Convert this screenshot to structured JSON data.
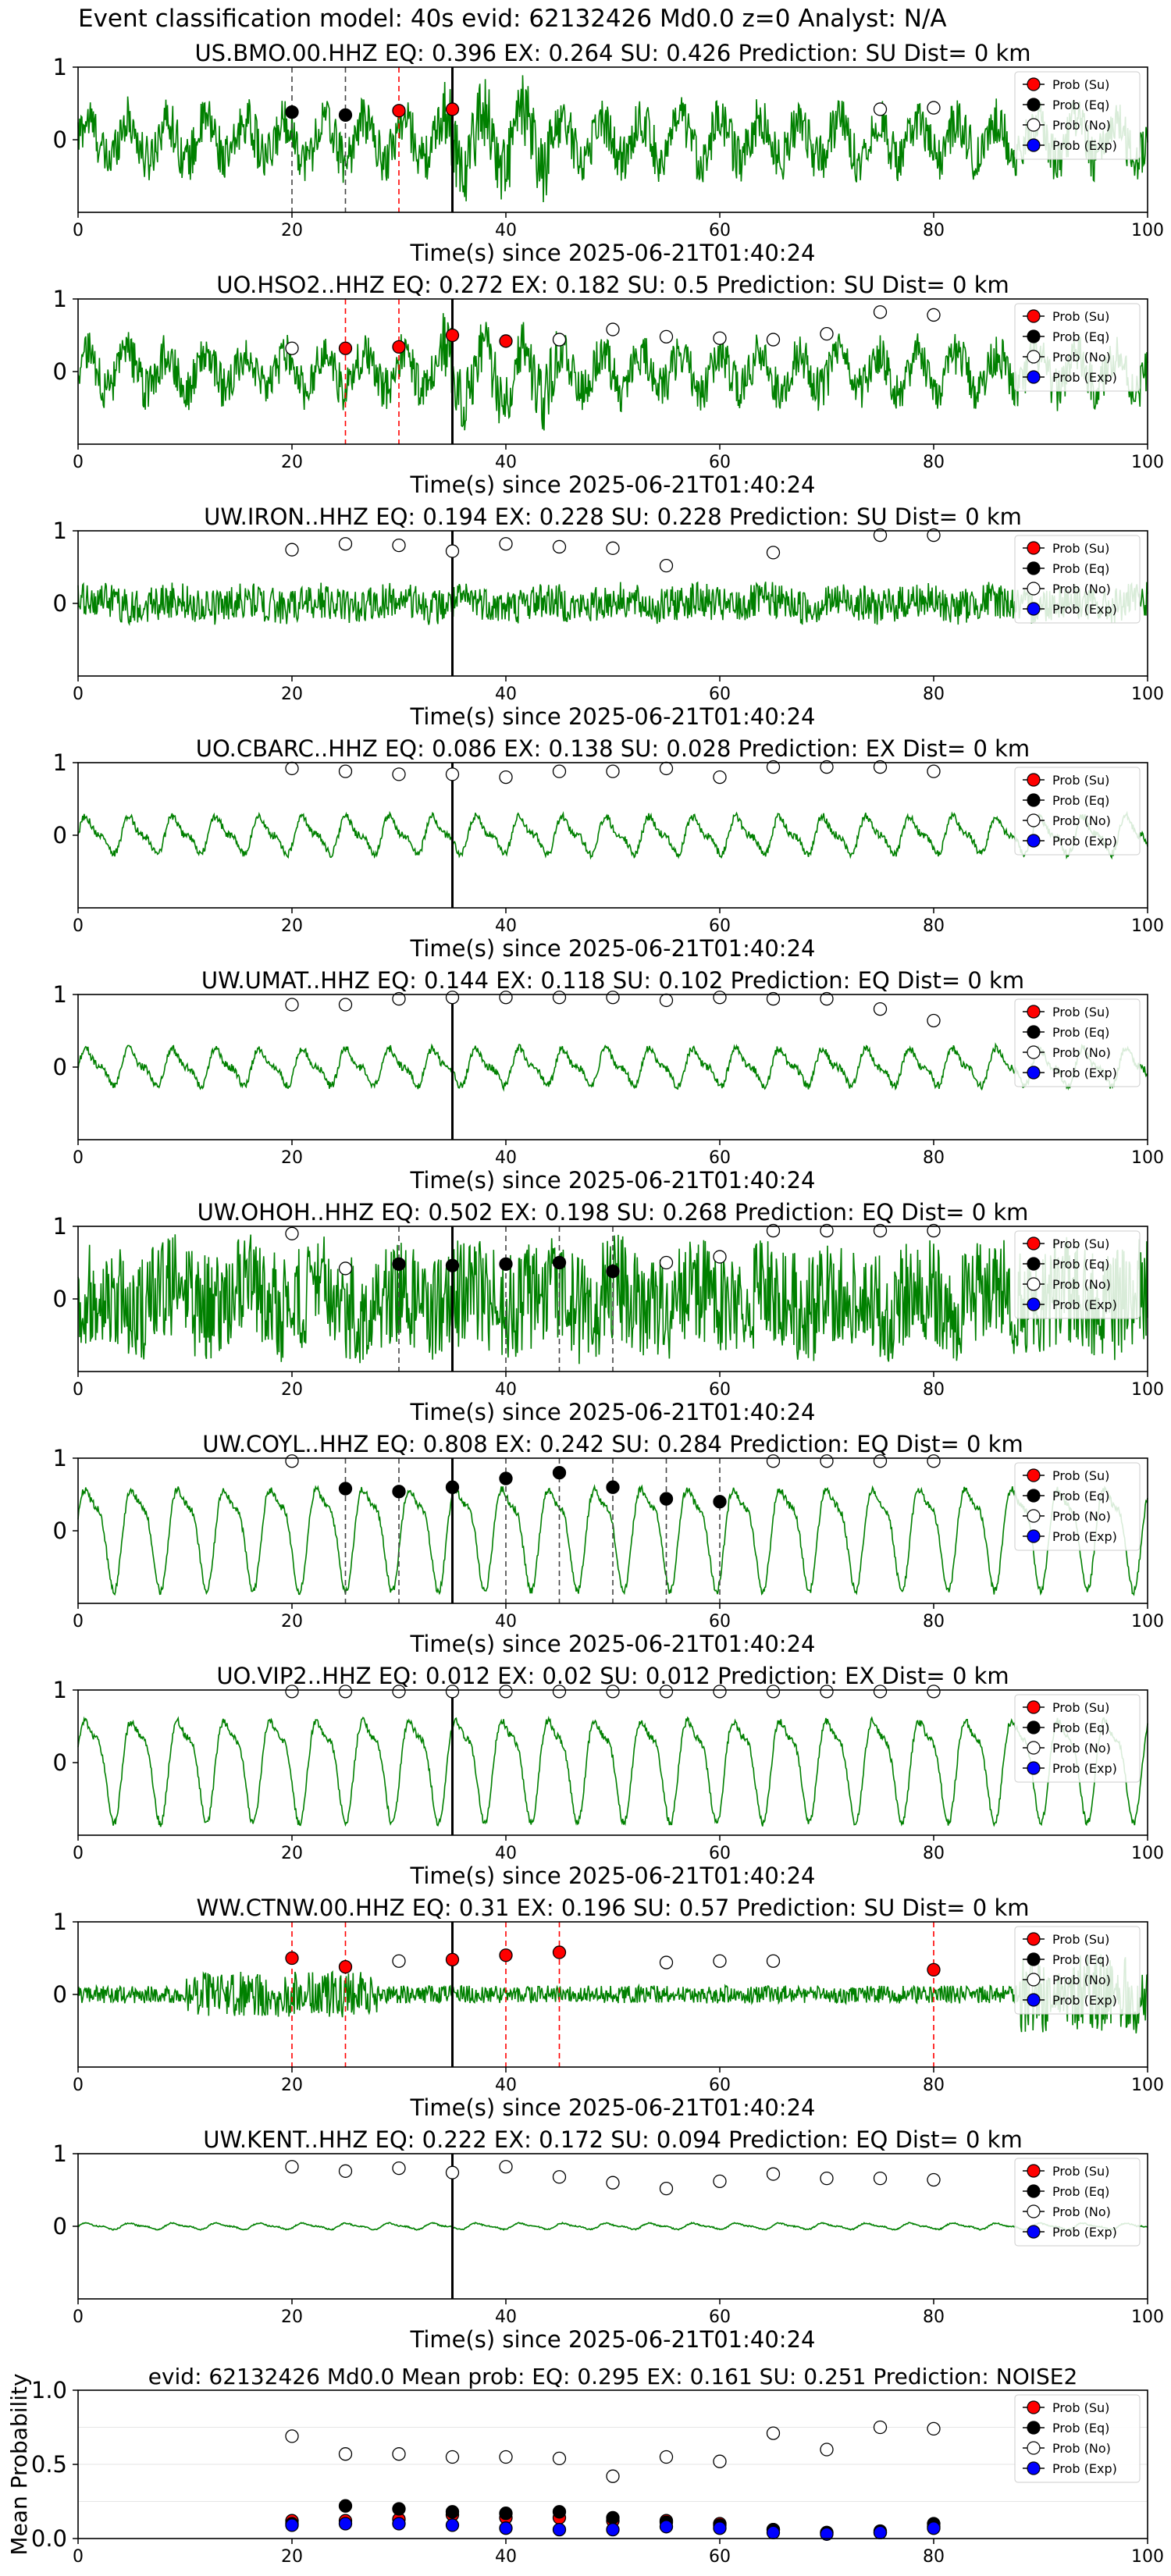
{
  "figure_title": "Event classification model: 40s evid: 62132426 Md0.0 z=0 Analyst: N/A",
  "xlabel": "Time(s) since 2025-06-21T01:40:24",
  "xticks": [
    "0",
    "20",
    "40",
    "60",
    "80",
    "100"
  ],
  "yticks_station": [
    "1",
    "0"
  ],
  "legend": {
    "su": "Prob (Su)",
    "eq": "Prob (Eq)",
    "no": "Prob (No)",
    "exp": "Prob (Exp)"
  },
  "colors": {
    "su": "#ff0000",
    "eq": "#000000",
    "no": "#ffffff",
    "exp": "#0000ff",
    "waveform": "#008000",
    "pick_line": "#000000"
  },
  "chart_data": [
    {
      "type": "line",
      "title": "US.BMO.00.HHZ   EQ: 0.396  EX: 0.264  SU: 0.426   Prediction: SU    Dist= 0 km",
      "pick_time": 35,
      "wave": {
        "amp": 0.55,
        "style": "burst"
      },
      "xlim": [
        0,
        100
      ],
      "ylim": [
        -1,
        1
      ],
      "points": [
        {
          "x": 20,
          "y": 0.38,
          "class": "eq",
          "marker": "dash"
        },
        {
          "x": 25,
          "y": 0.34,
          "class": "eq",
          "marker": "dash"
        },
        {
          "x": 30,
          "y": 0.4,
          "class": "su",
          "marker": "dash"
        },
        {
          "x": 35,
          "y": 0.42,
          "class": "su",
          "marker": "none"
        },
        {
          "x": 75,
          "y": 0.42,
          "class": "no",
          "marker": "none"
        },
        {
          "x": 80,
          "y": 0.44,
          "class": "no",
          "marker": "none"
        }
      ]
    },
    {
      "type": "line",
      "title": "UO.HSO2..HHZ   EQ: 0.272  EX: 0.182  SU: 0.5   Prediction: SU    Dist= 0 km",
      "pick_time": 35,
      "wave": {
        "amp": 0.5,
        "style": "burst"
      },
      "xlim": [
        0,
        100
      ],
      "ylim": [
        -1,
        1
      ],
      "points": [
        {
          "x": 20,
          "y": 0.32,
          "class": "no",
          "marker": "none"
        },
        {
          "x": 25,
          "y": 0.32,
          "class": "su",
          "marker": "dash"
        },
        {
          "x": 30,
          "y": 0.34,
          "class": "su",
          "marker": "dash"
        },
        {
          "x": 35,
          "y": 0.5,
          "class": "su",
          "marker": "none"
        },
        {
          "x": 40,
          "y": 0.42,
          "class": "su",
          "marker": "none"
        },
        {
          "x": 45,
          "y": 0.44,
          "class": "no",
          "marker": "none"
        },
        {
          "x": 50,
          "y": 0.58,
          "class": "no",
          "marker": "none"
        },
        {
          "x": 55,
          "y": 0.48,
          "class": "no",
          "marker": "none"
        },
        {
          "x": 60,
          "y": 0.46,
          "class": "no",
          "marker": "none"
        },
        {
          "x": 65,
          "y": 0.44,
          "class": "no",
          "marker": "none"
        },
        {
          "x": 70,
          "y": 0.52,
          "class": "no",
          "marker": "none"
        },
        {
          "x": 75,
          "y": 0.82,
          "class": "no",
          "marker": "none"
        },
        {
          "x": 80,
          "y": 0.78,
          "class": "no",
          "marker": "none"
        }
      ]
    },
    {
      "type": "line",
      "title": "UW.IRON..HHZ   EQ: 0.194  EX: 0.228  SU: 0.228   Prediction: SU    Dist= 0 km",
      "pick_time": 35,
      "wave": {
        "amp": 0.25,
        "style": "noise"
      },
      "xlim": [
        0,
        100
      ],
      "ylim": [
        -1,
        1
      ],
      "points": [
        {
          "x": 20,
          "y": 0.74,
          "class": "no",
          "marker": "none"
        },
        {
          "x": 25,
          "y": 0.82,
          "class": "no",
          "marker": "none"
        },
        {
          "x": 30,
          "y": 0.8,
          "class": "no",
          "marker": "none"
        },
        {
          "x": 35,
          "y": 0.72,
          "class": "no",
          "marker": "none"
        },
        {
          "x": 40,
          "y": 0.82,
          "class": "no",
          "marker": "none"
        },
        {
          "x": 45,
          "y": 0.78,
          "class": "no",
          "marker": "none"
        },
        {
          "x": 50,
          "y": 0.76,
          "class": "no",
          "marker": "none"
        },
        {
          "x": 55,
          "y": 0.52,
          "class": "no",
          "marker": "none"
        },
        {
          "x": 65,
          "y": 0.7,
          "class": "no",
          "marker": "none"
        },
        {
          "x": 75,
          "y": 0.94,
          "class": "no",
          "marker": "none"
        },
        {
          "x": 80,
          "y": 0.94,
          "class": "no",
          "marker": "none"
        }
      ]
    },
    {
      "type": "line",
      "title": "UO.CBARC..HHZ   EQ: 0.086  EX: 0.138  SU: 0.028   Prediction: EX    Dist= 0 km",
      "pick_time": 35,
      "wave": {
        "amp": 0.3,
        "style": "smooth"
      },
      "xlim": [
        0,
        100
      ],
      "ylim": [
        -1,
        1
      ],
      "points": [
        {
          "x": 20,
          "y": 0.92,
          "class": "no",
          "marker": "none"
        },
        {
          "x": 25,
          "y": 0.88,
          "class": "no",
          "marker": "none"
        },
        {
          "x": 30,
          "y": 0.84,
          "class": "no",
          "marker": "none"
        },
        {
          "x": 35,
          "y": 0.84,
          "class": "no",
          "marker": "none"
        },
        {
          "x": 40,
          "y": 0.8,
          "class": "no",
          "marker": "none"
        },
        {
          "x": 45,
          "y": 0.88,
          "class": "no",
          "marker": "none"
        },
        {
          "x": 50,
          "y": 0.88,
          "class": "no",
          "marker": "none"
        },
        {
          "x": 55,
          "y": 0.92,
          "class": "no",
          "marker": "none"
        },
        {
          "x": 60,
          "y": 0.8,
          "class": "no",
          "marker": "none"
        },
        {
          "x": 65,
          "y": 0.94,
          "class": "no",
          "marker": "none"
        },
        {
          "x": 70,
          "y": 0.94,
          "class": "no",
          "marker": "none"
        },
        {
          "x": 75,
          "y": 0.94,
          "class": "no",
          "marker": "none"
        },
        {
          "x": 80,
          "y": 0.88,
          "class": "no",
          "marker": "none"
        }
      ]
    },
    {
      "type": "line",
      "title": "UW.UMAT..HHZ   EQ: 0.144  EX: 0.118  SU: 0.102   Prediction: EQ    Dist= 0 km",
      "pick_time": 35,
      "wave": {
        "amp": 0.3,
        "style": "smooth"
      },
      "xlim": [
        0,
        100
      ],
      "ylim": [
        -1,
        1
      ],
      "points": [
        {
          "x": 20,
          "y": 0.86,
          "class": "no",
          "marker": "none"
        },
        {
          "x": 25,
          "y": 0.86,
          "class": "no",
          "marker": "none"
        },
        {
          "x": 30,
          "y": 0.94,
          "class": "no",
          "marker": "none"
        },
        {
          "x": 35,
          "y": 0.96,
          "class": "no",
          "marker": "none"
        },
        {
          "x": 40,
          "y": 0.96,
          "class": "no",
          "marker": "none"
        },
        {
          "x": 45,
          "y": 0.96,
          "class": "no",
          "marker": "none"
        },
        {
          "x": 50,
          "y": 0.96,
          "class": "no",
          "marker": "none"
        },
        {
          "x": 55,
          "y": 0.92,
          "class": "no",
          "marker": "none"
        },
        {
          "x": 60,
          "y": 0.96,
          "class": "no",
          "marker": "none"
        },
        {
          "x": 65,
          "y": 0.94,
          "class": "no",
          "marker": "none"
        },
        {
          "x": 70,
          "y": 0.94,
          "class": "no",
          "marker": "none"
        },
        {
          "x": 75,
          "y": 0.8,
          "class": "no",
          "marker": "none"
        },
        {
          "x": 80,
          "y": 0.64,
          "class": "no",
          "marker": "none"
        }
      ]
    },
    {
      "type": "line",
      "title": "UW.OHOH..HHZ   EQ: 0.502  EX: 0.198  SU: 0.268   Prediction: EQ    Dist= 0 km",
      "pick_time": 35,
      "wave": {
        "amp": 0.75,
        "style": "noise"
      },
      "xlim": [
        0,
        100
      ],
      "ylim": [
        -1,
        1
      ],
      "points": [
        {
          "x": 20,
          "y": 0.9,
          "class": "no",
          "marker": "none"
        },
        {
          "x": 25,
          "y": 0.42,
          "class": "no",
          "marker": "none"
        },
        {
          "x": 30,
          "y": 0.48,
          "class": "eq",
          "marker": "dash"
        },
        {
          "x": 35,
          "y": 0.46,
          "class": "eq",
          "marker": "none"
        },
        {
          "x": 40,
          "y": 0.48,
          "class": "eq",
          "marker": "dash"
        },
        {
          "x": 45,
          "y": 0.5,
          "class": "eq",
          "marker": "dash"
        },
        {
          "x": 50,
          "y": 0.38,
          "class": "eq",
          "marker": "dash"
        },
        {
          "x": 55,
          "y": 0.5,
          "class": "no",
          "marker": "none"
        },
        {
          "x": 60,
          "y": 0.58,
          "class": "no",
          "marker": "none"
        },
        {
          "x": 65,
          "y": 0.94,
          "class": "no",
          "marker": "none"
        },
        {
          "x": 70,
          "y": 0.94,
          "class": "no",
          "marker": "none"
        },
        {
          "x": 75,
          "y": 0.94,
          "class": "no",
          "marker": "none"
        },
        {
          "x": 80,
          "y": 0.94,
          "class": "no",
          "marker": "none"
        }
      ]
    },
    {
      "type": "line",
      "title": "UW.COYL..HHZ   EQ: 0.808  EX: 0.242  SU: 0.284   Prediction: EQ    Dist= 0 km",
      "pick_time": 35,
      "wave": {
        "amp": 0.85,
        "style": "oscill"
      },
      "xlim": [
        0,
        100
      ],
      "ylim": [
        -1,
        1
      ],
      "points": [
        {
          "x": 20,
          "y": 0.96,
          "class": "no",
          "marker": "none"
        },
        {
          "x": 25,
          "y": 0.58,
          "class": "eq",
          "marker": "dash"
        },
        {
          "x": 30,
          "y": 0.54,
          "class": "eq",
          "marker": "dash"
        },
        {
          "x": 35,
          "y": 0.6,
          "class": "eq",
          "marker": "none"
        },
        {
          "x": 40,
          "y": 0.72,
          "class": "eq",
          "marker": "dash"
        },
        {
          "x": 45,
          "y": 0.8,
          "class": "eq",
          "marker": "dash"
        },
        {
          "x": 50,
          "y": 0.6,
          "class": "eq",
          "marker": "dash"
        },
        {
          "x": 55,
          "y": 0.44,
          "class": "eq",
          "marker": "dash"
        },
        {
          "x": 60,
          "y": 0.4,
          "class": "eq",
          "marker": "dash"
        },
        {
          "x": 65,
          "y": 0.96,
          "class": "no",
          "marker": "none"
        },
        {
          "x": 70,
          "y": 0.96,
          "class": "no",
          "marker": "none"
        },
        {
          "x": 75,
          "y": 0.96,
          "class": "no",
          "marker": "none"
        },
        {
          "x": 80,
          "y": 0.96,
          "class": "no",
          "marker": "none"
        }
      ]
    },
    {
      "type": "line",
      "title": "UO.VIP2..HHZ   EQ: 0.012  EX: 0.02  SU: 0.012   Prediction: EX    Dist= 0 km",
      "pick_time": 35,
      "wave": {
        "amp": 0.85,
        "style": "oscill"
      },
      "xlim": [
        0,
        100
      ],
      "ylim": [
        -1,
        1
      ],
      "points": [
        {
          "x": 20,
          "y": 0.98,
          "class": "no",
          "marker": "none"
        },
        {
          "x": 25,
          "y": 0.98,
          "class": "no",
          "marker": "none"
        },
        {
          "x": 30,
          "y": 0.98,
          "class": "no",
          "marker": "none"
        },
        {
          "x": 35,
          "y": 0.98,
          "class": "no",
          "marker": "none"
        },
        {
          "x": 40,
          "y": 0.98,
          "class": "no",
          "marker": "none"
        },
        {
          "x": 45,
          "y": 0.98,
          "class": "no",
          "marker": "none"
        },
        {
          "x": 50,
          "y": 0.98,
          "class": "no",
          "marker": "none"
        },
        {
          "x": 55,
          "y": 0.98,
          "class": "no",
          "marker": "none"
        },
        {
          "x": 60,
          "y": 0.98,
          "class": "no",
          "marker": "none"
        },
        {
          "x": 65,
          "y": 0.98,
          "class": "no",
          "marker": "none"
        },
        {
          "x": 70,
          "y": 0.98,
          "class": "no",
          "marker": "none"
        },
        {
          "x": 75,
          "y": 0.98,
          "class": "no",
          "marker": "none"
        },
        {
          "x": 80,
          "y": 0.98,
          "class": "no",
          "marker": "none"
        }
      ]
    },
    {
      "type": "line",
      "title": "WW.CTNW.00.HHZ   EQ: 0.31  EX: 0.196  SU: 0.57   Prediction: SU    Dist= 0 km",
      "pick_time": 35,
      "wave": {
        "amp": 0.35,
        "style": "burst2"
      },
      "xlim": [
        0,
        100
      ],
      "ylim": [
        -1,
        1
      ],
      "points": [
        {
          "x": 20,
          "y": 0.5,
          "class": "su",
          "marker": "dash"
        },
        {
          "x": 25,
          "y": 0.38,
          "class": "su",
          "marker": "dash"
        },
        {
          "x": 30,
          "y": 0.46,
          "class": "no",
          "marker": "none"
        },
        {
          "x": 35,
          "y": 0.48,
          "class": "su",
          "marker": "none"
        },
        {
          "x": 40,
          "y": 0.54,
          "class": "su",
          "marker": "dash"
        },
        {
          "x": 45,
          "y": 0.58,
          "class": "su",
          "marker": "dash"
        },
        {
          "x": 55,
          "y": 0.44,
          "class": "no",
          "marker": "none"
        },
        {
          "x": 60,
          "y": 0.46,
          "class": "no",
          "marker": "none"
        },
        {
          "x": 65,
          "y": 0.46,
          "class": "no",
          "marker": "none"
        },
        {
          "x": 80,
          "y": 0.34,
          "class": "su",
          "marker": "dash"
        }
      ]
    },
    {
      "type": "line",
      "title": "UW.KENT..HHZ   EQ: 0.222  EX: 0.172  SU: 0.094   Prediction: EQ    Dist= 0 km",
      "pick_time": 35,
      "wave": {
        "amp": 0.05,
        "style": "smooth"
      },
      "xlim": [
        0,
        100
      ],
      "ylim": [
        -1,
        1
      ],
      "points": [
        {
          "x": 20,
          "y": 0.82,
          "class": "no",
          "marker": "none"
        },
        {
          "x": 25,
          "y": 0.76,
          "class": "no",
          "marker": "none"
        },
        {
          "x": 30,
          "y": 0.8,
          "class": "no",
          "marker": "none"
        },
        {
          "x": 35,
          "y": 0.74,
          "class": "no",
          "marker": "none"
        },
        {
          "x": 40,
          "y": 0.82,
          "class": "no",
          "marker": "none"
        },
        {
          "x": 45,
          "y": 0.68,
          "class": "no",
          "marker": "none"
        },
        {
          "x": 50,
          "y": 0.6,
          "class": "no",
          "marker": "none"
        },
        {
          "x": 55,
          "y": 0.52,
          "class": "no",
          "marker": "none"
        },
        {
          "x": 60,
          "y": 0.62,
          "class": "no",
          "marker": "none"
        },
        {
          "x": 65,
          "y": 0.72,
          "class": "no",
          "marker": "none"
        },
        {
          "x": 70,
          "y": 0.66,
          "class": "no",
          "marker": "none"
        },
        {
          "x": 75,
          "y": 0.66,
          "class": "no",
          "marker": "none"
        },
        {
          "x": 80,
          "y": 0.64,
          "class": "no",
          "marker": "none"
        }
      ]
    },
    {
      "type": "scatter",
      "title": "evid: 62132426  Md0.0   Mean prob:   EQ: 0.295  EX: 0.161  SU: 0.251   Prediction: NOISE2",
      "ylabel": "Mean Probability",
      "yticks": [
        "1.0",
        "0.5",
        "0.0"
      ],
      "xlim": [
        0,
        100
      ],
      "ylim": [
        0,
        1
      ],
      "x": [
        20,
        25,
        30,
        35,
        40,
        45,
        50,
        55,
        60,
        65,
        70,
        75,
        80
      ],
      "series": [
        {
          "name": "Prob (Su)",
          "class": "su",
          "values": [
            0.12,
            0.12,
            0.13,
            0.16,
            0.14,
            0.14,
            0.12,
            0.12,
            0.1,
            0.06,
            0.04,
            0.04,
            0.08
          ]
        },
        {
          "name": "Prob (Eq)",
          "class": "eq",
          "values": [
            0.1,
            0.22,
            0.2,
            0.18,
            0.17,
            0.18,
            0.14,
            0.11,
            0.09,
            0.06,
            0.04,
            0.05,
            0.1
          ]
        },
        {
          "name": "Prob (No)",
          "class": "no",
          "values": [
            0.69,
            0.57,
            0.57,
            0.55,
            0.55,
            0.54,
            0.42,
            0.55,
            0.52,
            0.71,
            0.6,
            0.75,
            0.74
          ]
        },
        {
          "name": "Prob (Exp)",
          "class": "exp",
          "values": [
            0.09,
            0.1,
            0.1,
            0.09,
            0.07,
            0.06,
            0.06,
            0.08,
            0.07,
            0.04,
            0.03,
            0.04,
            0.07
          ]
        }
      ]
    }
  ]
}
